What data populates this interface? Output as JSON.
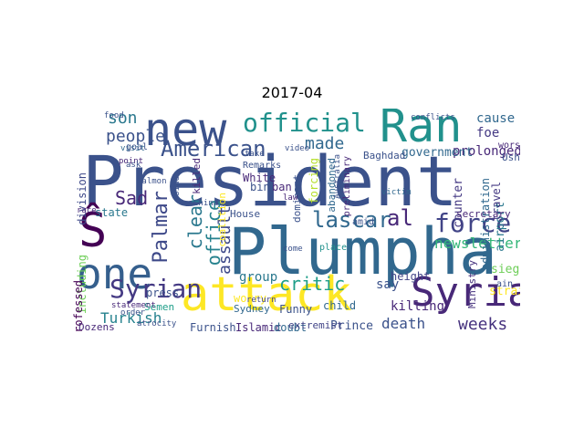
{
  "title": "2017-04",
  "cloud": {
    "words": [
      {
        "text": "President",
        "color": "#3b528b"
      },
      {
        "text": "Plumpha",
        "color": "#31688e"
      },
      {
        "text": "attack",
        "color": "#fde725"
      },
      {
        "text": "new",
        "color": "#3b528b"
      },
      {
        "text": "Ran",
        "color": "#21918c"
      },
      {
        "text": "one",
        "color": "#355f8d"
      },
      {
        "text": "Syria",
        "color": "#482878"
      },
      {
        "text": "Ŝ",
        "color": "#440154"
      },
      {
        "text": "official",
        "color": "#21918c"
      },
      {
        "text": "American",
        "color": "#3b528b"
      },
      {
        "text": "Syrian",
        "color": "#443983"
      },
      {
        "text": "force",
        "color": "#414487"
      },
      {
        "text": "lascar",
        "color": "#31688e"
      },
      {
        "text": "al",
        "color": "#482878"
      },
      {
        "text": "Palmar",
        "color": "#3e4989"
      },
      {
        "text": "people",
        "color": "#3b528b"
      },
      {
        "text": "son",
        "color": "#2a788e"
      },
      {
        "text": "made",
        "color": "#31688e"
      },
      {
        "text": "critic",
        "color": "#1f9e89"
      },
      {
        "text": "clear",
        "color": "#2a788e"
      },
      {
        "text": "office",
        "color": "#26828e"
      },
      {
        "text": "assault",
        "color": "#3e4989"
      },
      {
        "text": "newsletter",
        "color": "#35b779"
      },
      {
        "text": "Sad",
        "color": "#482878"
      },
      {
        "text": "weeks",
        "color": "#46327e"
      },
      {
        "text": "death",
        "color": "#3b528b"
      },
      {
        "text": "cause",
        "color": "#31688e"
      },
      {
        "text": "foe",
        "color": "#443983"
      },
      {
        "text": "Turkish",
        "color": "#26828e"
      },
      {
        "text": "killing",
        "color": "#482878"
      },
      {
        "text": "say",
        "color": "#3b528b"
      },
      {
        "text": "prolonged",
        "color": "#482878"
      },
      {
        "text": "government",
        "color": "#31688e"
      },
      {
        "text": "siege",
        "color": "#6ece58"
      },
      {
        "text": "Prince",
        "color": "#3b528b"
      },
      {
        "text": "Islamic",
        "color": "#482878"
      },
      {
        "text": "Furnish",
        "color": "#3b528b"
      },
      {
        "text": "doubt",
        "color": "#31688e"
      },
      {
        "text": "extremist",
        "color": "#414487"
      },
      {
        "text": "airport",
        "color": "#2a788e"
      },
      {
        "text": "Baghdad",
        "color": "#3b528b"
      },
      {
        "text": "state",
        "color": "#2a788e"
      },
      {
        "text": "Semen",
        "color": "#1f9e89"
      },
      {
        "text": "division",
        "color": "#3e4989"
      },
      {
        "text": "including",
        "color": "#6ece58"
      },
      {
        "text": "professed",
        "color": "#440154"
      },
      {
        "text": "White",
        "color": "#482878"
      },
      {
        "text": "House",
        "color": "#3b528b"
      },
      {
        "text": "group",
        "color": "#2a788e"
      },
      {
        "text": "counter",
        "color": "#443983"
      },
      {
        "text": "secretary",
        "color": "#482878"
      },
      {
        "text": "child",
        "color": "#31688e"
      },
      {
        "text": "Funny",
        "color": "#3b528b"
      },
      {
        "text": "height",
        "color": "#414487"
      },
      {
        "text": "bin",
        "color": "#3b528b"
      },
      {
        "text": "ban",
        "color": "#482878"
      },
      {
        "text": "Ministry",
        "color": "#46327e"
      },
      {
        "text": "strain",
        "color": "#fde725"
      },
      {
        "text": "Dozens",
        "color": "#482878"
      },
      {
        "text": "press",
        "color": "#3b528b"
      },
      {
        "text": "killed",
        "color": "#482878"
      },
      {
        "text": "coalition",
        "color": "#fde725"
      },
      {
        "text": "administration",
        "color": "#31688e"
      },
      {
        "text": "forcing",
        "color": "#b5de2b"
      },
      {
        "text": "dominant",
        "color": "#3b528b"
      },
      {
        "text": "abandoned",
        "color": "#31688e"
      },
      {
        "text": "travel",
        "color": "#443983"
      },
      {
        "text": "Usher",
        "color": "#3b528b"
      },
      {
        "text": "worry",
        "color": "#fde725"
      },
      {
        "text": "Sydney",
        "color": "#31688e"
      },
      {
        "text": "atrocity",
        "color": "#3b528b"
      },
      {
        "text": "statement",
        "color": "#482878"
      },
      {
        "text": "visit",
        "color": "#31688e"
      },
      {
        "text": "conflicts",
        "color": "#3b528b"
      },
      {
        "text": "worst",
        "color": "#482878"
      },
      {
        "text": "Remarks",
        "color": "#3b528b"
      },
      {
        "text": "return",
        "color": "#414487"
      },
      {
        "text": "amid",
        "color": "#3b528b"
      },
      {
        "text": "victim",
        "color": "#31688e"
      },
      {
        "text": "ain",
        "color": "#3b528b"
      },
      {
        "text": "law",
        "color": "#482878"
      },
      {
        "text": "preliminary",
        "color": "#482878"
      },
      {
        "text": "Australia",
        "color": "#3b528b"
      },
      {
        "text": "China",
        "color": "#3b528b"
      },
      {
        "text": "order",
        "color": "#3b528b"
      },
      {
        "text": "point",
        "color": "#482878"
      },
      {
        "text": "goal",
        "color": "#3b528b"
      },
      {
        "text": "ask",
        "color": "#3b528b"
      },
      {
        "text": "food",
        "color": "#3b528b"
      },
      {
        "text": "take",
        "color": "#3b528b"
      },
      {
        "text": "side",
        "color": "#3b528b"
      },
      {
        "text": "race",
        "color": "#482878"
      },
      {
        "text": "video",
        "color": "#3b528b"
      },
      {
        "text": "place",
        "color": "#21918c"
      },
      {
        "text": "come",
        "color": "#3b528b"
      },
      {
        "text": "Salmon",
        "color": "#3b528b"
      }
    ]
  }
}
